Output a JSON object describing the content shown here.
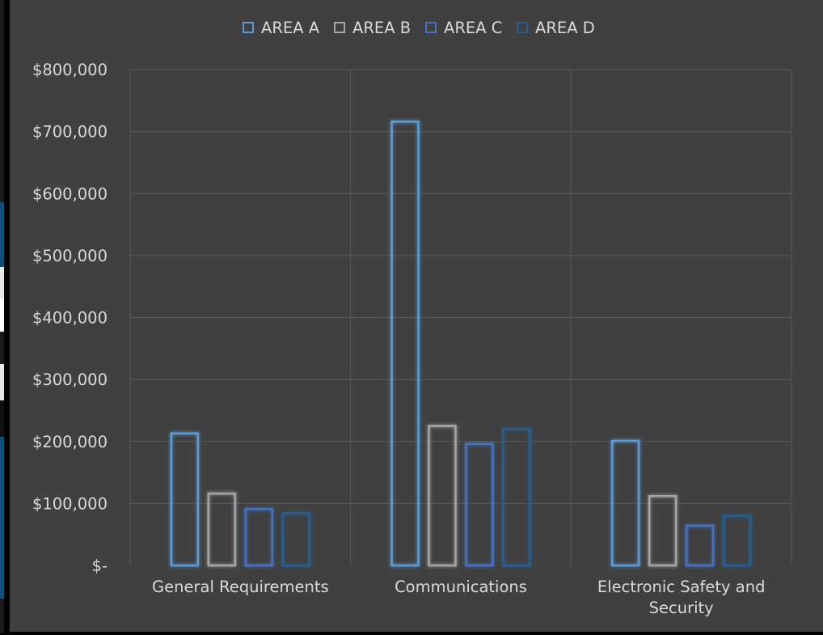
{
  "chart_data": {
    "type": "bar",
    "title": "",
    "xlabel": "",
    "ylabel": "",
    "categories": [
      "General Requirements",
      "Communications",
      "Electronic Safety and Security"
    ],
    "series": [
      {
        "name": "AREA A",
        "color": "#5B9BD5",
        "values": [
          213000,
          716000,
          201000
        ]
      },
      {
        "name": "AREA B",
        "color": "#A5A5A5",
        "values": [
          116000,
          225000,
          112000
        ]
      },
      {
        "name": "AREA C",
        "color": "#4472C4",
        "values": [
          91000,
          196000,
          64000
        ]
      },
      {
        "name": "AREA D",
        "color": "#255E91",
        "values": [
          84000,
          220000,
          80000
        ]
      }
    ],
    "ylim": [
      0,
      800000
    ],
    "y_ticks": [
      0,
      100000,
      200000,
      300000,
      400000,
      500000,
      600000,
      700000,
      800000
    ],
    "y_tick_labels": [
      "$-",
      "$100,000",
      "$200,000",
      "$300,000",
      "$400,000",
      "$500,000",
      "$600,000",
      "$700,000",
      "$800,000"
    ],
    "grid": true,
    "legend_position": "top",
    "background_color": "#404040",
    "grid_color": "#595959",
    "text_color": "#D9D9D9"
  }
}
